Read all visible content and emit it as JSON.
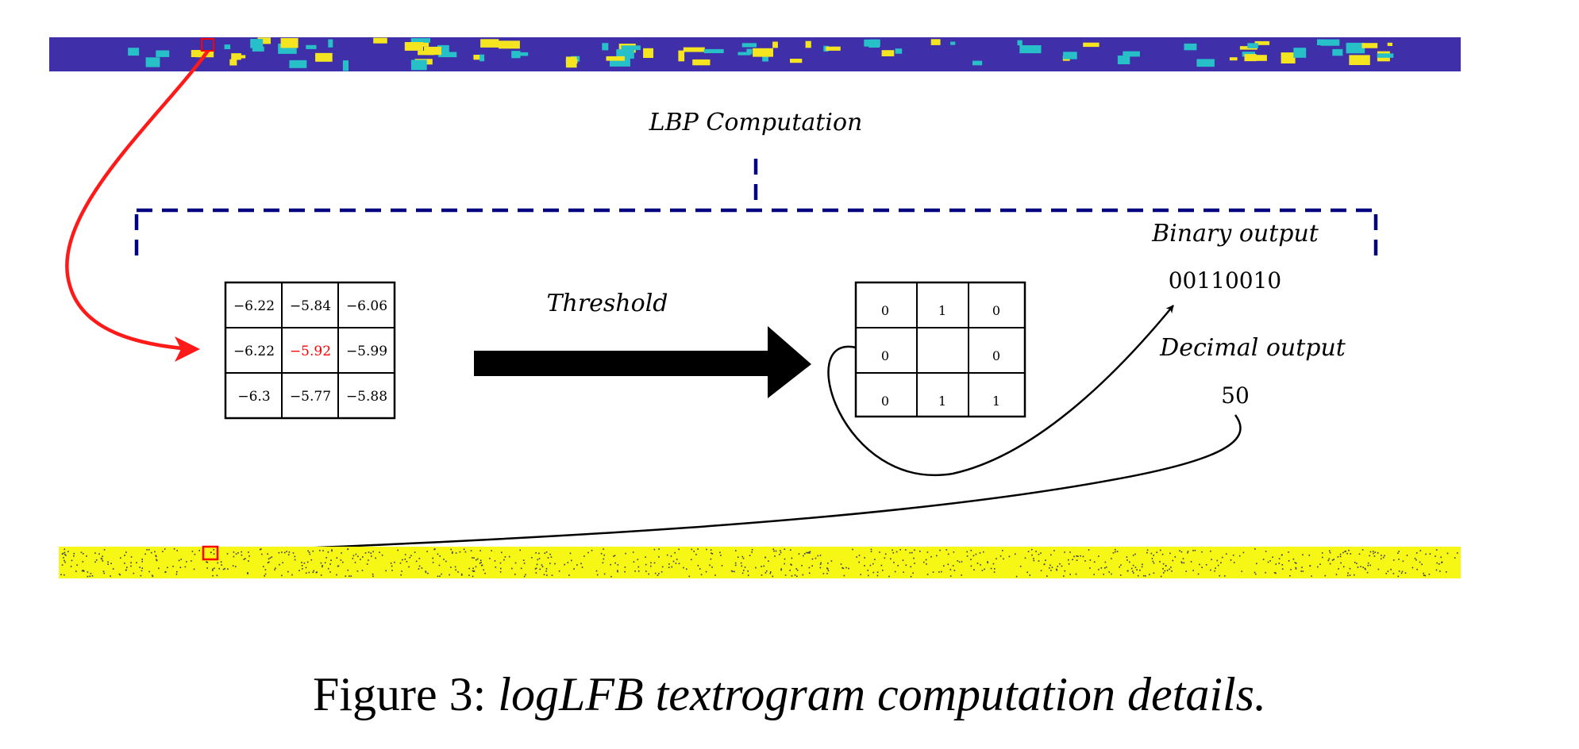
{
  "labels": {
    "lbp": "LBP Computation",
    "threshold": "Threshold",
    "binary_label": "Binary output",
    "binary_value": "00110010",
    "decimal_label": "Decimal output",
    "decimal_value": "50"
  },
  "input_grid": [
    [
      "−6.22",
      "−5.84",
      "−6.06"
    ],
    [
      "−6.22",
      "−5.92",
      "−5.99"
    ],
    [
      "−6.3",
      "−5.77",
      "−5.88"
    ]
  ],
  "binary_grid": [
    [
      "0",
      "1",
      "0"
    ],
    [
      "0",
      "",
      "0"
    ],
    [
      "0",
      "1",
      "1"
    ]
  ],
  "caption": {
    "prefix": "Figure 3: ",
    "text": "logLFB textrogram computation details."
  },
  "colors": {
    "spectrogram_bg": "#3f2fa8",
    "spectrogram_yellow": "#f5e521",
    "spectrogram_cyan": "#27c0c8",
    "textrogram_bg": "#f7f716",
    "bracket": "#000080",
    "highlight": "#ff0000"
  },
  "icons": {
    "threshold_arrow": "thick-right-arrow-icon",
    "curved_arrow": "curved-arrow-icon"
  }
}
